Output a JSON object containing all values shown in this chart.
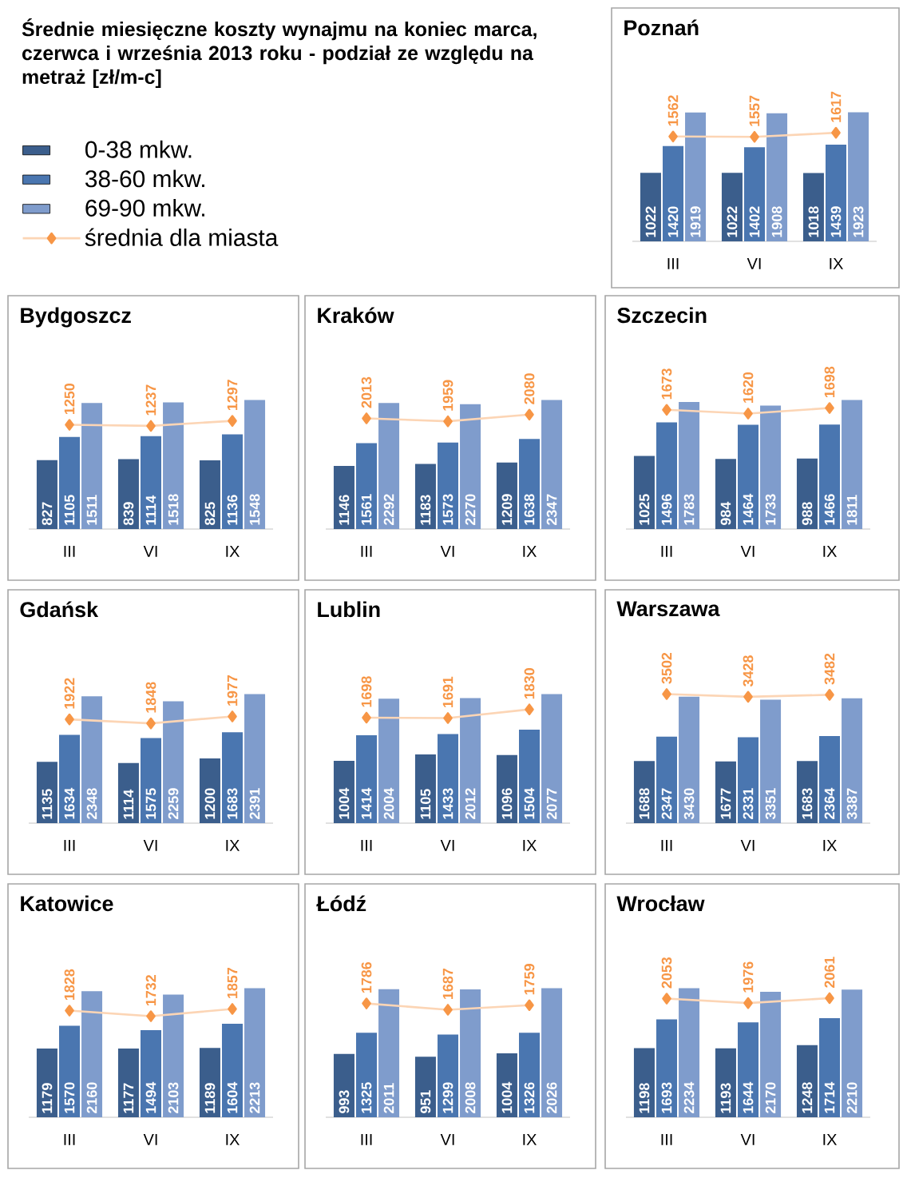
{
  "chart_data": [
    {
      "type": "other",
      "title": "Średnie miesięczne koszty wynajmu na koniec marca, czerwca i września 2013 roku - podział ze względu na metraż [zł/m-c]"
    },
    {
      "type": "bar",
      "title": "Poznań",
      "categories": [
        "III",
        "VI",
        "IX"
      ],
      "data_labels": true,
      "legend": "left",
      "marker": "diamond",
      "series": [
        {
          "name": "0-38 mkw.",
          "color": "#3b5e8c",
          "values": [
            1022,
            1022,
            1018
          ]
        },
        {
          "name": "38-60 mkw.",
          "color": "#4a76b0",
          "values": [
            1420,
            1402,
            1439
          ]
        },
        {
          "name": "69-90 mkw.",
          "color": "#7f9ccc",
          "values": [
            1919,
            1908,
            1923
          ]
        },
        {
          "name": "średnia dla miasta",
          "type": "line",
          "color": "#f79646",
          "values": [
            1562,
            1557,
            1617
          ]
        }
      ]
    },
    {
      "type": "bar",
      "title": "Bydgoszcz",
      "categories": [
        "III",
        "VI",
        "IX"
      ],
      "data_labels": true,
      "marker": "diamond",
      "series": [
        {
          "color": "#3b5e8c",
          "values": [
            827,
            839,
            825
          ]
        },
        {
          "color": "#4a76b0",
          "values": [
            1105,
            1114,
            1136
          ]
        },
        {
          "color": "#7f9ccc",
          "values": [
            1511,
            1518,
            1548
          ]
        },
        {
          "type": "line",
          "color": "#f79646",
          "values": [
            1250,
            1237,
            1297
          ]
        }
      ]
    },
    {
      "type": "bar",
      "title": "Kraków",
      "categories": [
        "III",
        "VI",
        "IX"
      ],
      "data_labels": true,
      "marker": "diamond",
      "series": [
        {
          "color": "#3b5e8c",
          "values": [
            1146,
            1183,
            1209
          ]
        },
        {
          "color": "#4a76b0",
          "values": [
            1561,
            1573,
            1638
          ]
        },
        {
          "color": "#7f9ccc",
          "values": [
            2292,
            2270,
            2347
          ]
        },
        {
          "type": "line",
          "color": "#f79646",
          "values": [
            2013,
            1959,
            2080
          ]
        }
      ]
    },
    {
      "type": "bar",
      "title": "Szczecin",
      "categories": [
        "III",
        "VI",
        "IX"
      ],
      "data_labels": true,
      "marker": "diamond",
      "series": [
        {
          "color": "#3b5e8c",
          "values": [
            1025,
            984,
            988
          ]
        },
        {
          "color": "#4a76b0",
          "values": [
            1496,
            1464,
            1466
          ]
        },
        {
          "color": "#7f9ccc",
          "values": [
            1783,
            1733,
            1811
          ]
        },
        {
          "type": "line",
          "color": "#f79646",
          "values": [
            1673,
            1620,
            1698
          ]
        }
      ]
    },
    {
      "type": "bar",
      "title": "Gdańsk",
      "categories": [
        "III",
        "VI",
        "IX"
      ],
      "data_labels": true,
      "marker": "diamond",
      "series": [
        {
          "color": "#3b5e8c",
          "values": [
            1135,
            1114,
            1200
          ]
        },
        {
          "color": "#4a76b0",
          "values": [
            1634,
            1575,
            1683
          ]
        },
        {
          "color": "#7f9ccc",
          "values": [
            2348,
            2259,
            2391
          ]
        },
        {
          "type": "line",
          "color": "#f79646",
          "values": [
            1922,
            1848,
            1977
          ]
        }
      ]
    },
    {
      "type": "bar",
      "title": "Lublin",
      "categories": [
        "III",
        "VI",
        "IX"
      ],
      "data_labels": true,
      "marker": "diamond",
      "series": [
        {
          "color": "#3b5e8c",
          "values": [
            1004,
            1105,
            1096
          ]
        },
        {
          "color": "#4a76b0",
          "values": [
            1414,
            1433,
            1504
          ]
        },
        {
          "color": "#7f9ccc",
          "values": [
            2004,
            2012,
            2077
          ]
        },
        {
          "type": "line",
          "color": "#f79646",
          "values": [
            1698,
            1691,
            1830
          ]
        }
      ]
    },
    {
      "type": "bar",
      "title": "Warszawa",
      "categories": [
        "III",
        "VI",
        "IX"
      ],
      "data_labels": true,
      "marker": "diamond",
      "series": [
        {
          "color": "#3b5e8c",
          "values": [
            1688,
            1677,
            1683
          ]
        },
        {
          "color": "#4a76b0",
          "values": [
            2347,
            2331,
            2364
          ]
        },
        {
          "color": "#7f9ccc",
          "values": [
            3430,
            3351,
            3387
          ]
        },
        {
          "type": "line",
          "color": "#f79646",
          "values": [
            3502,
            3428,
            3482
          ]
        }
      ]
    },
    {
      "type": "bar",
      "title": "Katowice",
      "categories": [
        "III",
        "VI",
        "IX"
      ],
      "data_labels": true,
      "marker": "diamond",
      "series": [
        {
          "color": "#3b5e8c",
          "values": [
            1179,
            1177,
            1189
          ]
        },
        {
          "color": "#4a76b0",
          "values": [
            1570,
            1494,
            1604
          ]
        },
        {
          "color": "#7f9ccc",
          "values": [
            2160,
            2103,
            2213
          ]
        },
        {
          "type": "line",
          "color": "#f79646",
          "values": [
            1828,
            1732,
            1857
          ]
        }
      ]
    },
    {
      "type": "bar",
      "title": "Łódź",
      "categories": [
        "III",
        "VI",
        "IX"
      ],
      "data_labels": true,
      "marker": "diamond",
      "series": [
        {
          "color": "#3b5e8c",
          "values": [
            993,
            951,
            1004
          ]
        },
        {
          "color": "#4a76b0",
          "values": [
            1325,
            1299,
            1326
          ]
        },
        {
          "color": "#7f9ccc",
          "values": [
            2011,
            2008,
            2026
          ]
        },
        {
          "type": "line",
          "color": "#f79646",
          "values": [
            1786,
            1687,
            1759
          ]
        }
      ]
    },
    {
      "type": "bar",
      "title": "Wrocław",
      "categories": [
        "III",
        "VI",
        "IX"
      ],
      "data_labels": true,
      "marker": "diamond",
      "series": [
        {
          "color": "#3b5e8c",
          "values": [
            1198,
            1193,
            1248
          ]
        },
        {
          "color": "#4a76b0",
          "values": [
            1693,
            1644,
            1714
          ]
        },
        {
          "color": "#7f9ccc",
          "values": [
            2234,
            2170,
            2210
          ]
        },
        {
          "type": "line",
          "color": "#f79646",
          "values": [
            2053,
            1976,
            2061
          ]
        }
      ]
    }
  ]
}
